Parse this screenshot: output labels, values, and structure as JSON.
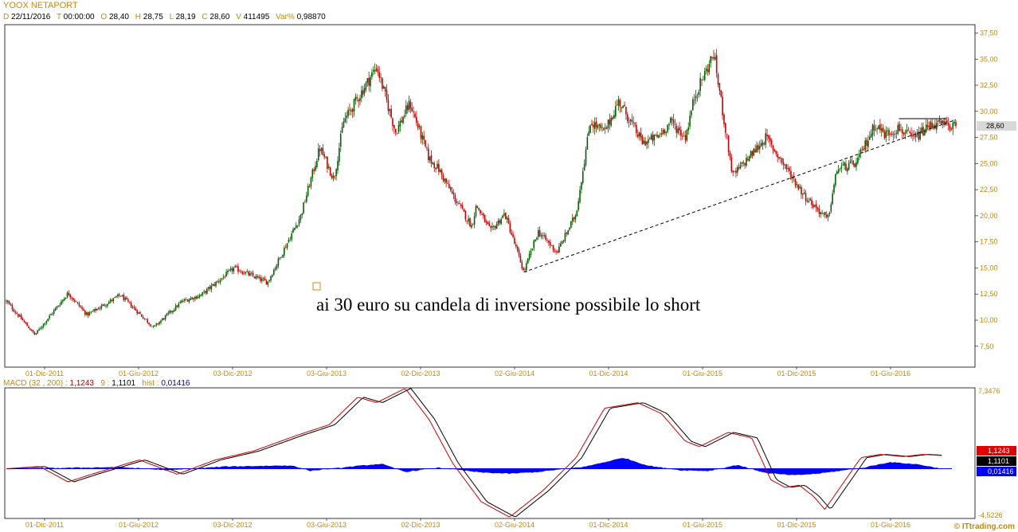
{
  "header": {
    "title": "YOOX NETAPORT",
    "fields": [
      {
        "k": "D",
        "v": "22/11/2016"
      },
      {
        "k": "T",
        "v": "00:00:00"
      },
      {
        "k": "O",
        "v": "28,40"
      },
      {
        "k": "H",
        "v": "28,75"
      },
      {
        "k": "L",
        "v": "28,19"
      },
      {
        "k": "C",
        "v": "28,60"
      },
      {
        "k": "V",
        "v": "411495"
      },
      {
        "k": "Var%",
        "v": "0,98870"
      }
    ]
  },
  "macd_header": {
    "label": "MACD",
    "params": "(32 , 200)",
    "macd_value": "1,1243",
    "signal_period": "9",
    "signal_value": "1,1101",
    "hist_label": "hist",
    "hist_value": "0,01416"
  },
  "copyright": "© ITtrading.com",
  "colors": {
    "up_candle": "#006400",
    "down_candle": "#cc0000",
    "macd_line": "#cc0000",
    "signal_line": "#000000",
    "histogram": "#0000ff",
    "axis_label": "#c88a00",
    "last_price_box": "#d8d8d8"
  },
  "chart_data": [
    {
      "type": "candlestick",
      "title": "YOOX NETAPORT",
      "x_tick_labels": [
        "01-Dic-2011",
        "01-Giu-2012",
        "03-Dic-2012",
        "03-Giu-2013",
        "02-Dic-2013",
        "02-Giu-2014",
        "01-Dic-2014",
        "01-Giu-2015",
        "01-Dic-2015",
        "01-Giu-2016"
      ],
      "y_tick_labels": [
        "7,50",
        "10,00",
        "12,50",
        "15,00",
        "17,50",
        "20,00",
        "22,50",
        "25,00",
        "27,50",
        "30,00",
        "32,50",
        "35,00",
        "37,50"
      ],
      "ylim": [
        5.5,
        38.3
      ],
      "grid": false,
      "last_price": 28.6,
      "last_price_label": "28,60",
      "price_path": {
        "t": [
          0.0,
          0.03,
          0.065,
          0.085,
          0.12,
          0.155,
          0.185,
          0.205,
          0.24,
          0.275,
          0.31,
          0.33,
          0.345,
          0.355,
          0.375,
          0.39,
          0.41,
          0.425,
          0.445,
          0.455,
          0.47,
          0.49,
          0.495,
          0.51,
          0.525,
          0.545,
          0.56,
          0.58,
          0.6,
          0.615,
          0.63,
          0.645,
          0.67,
          0.685,
          0.7,
          0.715,
          0.725,
          0.745,
          0.765,
          0.8,
          0.84,
          0.865,
          0.875,
          0.895,
          0.915,
          0.925,
          0.94,
          0.955,
          0.975,
          1.0
        ],
        "price": [
          11.8,
          8.6,
          12.6,
          10.5,
          12.4,
          9.3,
          11.8,
          12.4,
          15.0,
          13.6,
          20.0,
          26.5,
          23.5,
          29.0,
          32.0,
          34.3,
          28.0,
          30.8,
          25.5,
          24.5,
          22.0,
          19.0,
          21.0,
          18.5,
          20.2,
          14.6,
          18.5,
          16.5,
          20.2,
          29.0,
          28.0,
          31.0,
          27.0,
          27.5,
          29.0,
          27.5,
          31.5,
          35.5,
          23.8,
          27.5,
          22.0,
          19.6,
          24.5,
          25.0,
          28.8,
          27.8,
          28.4,
          27.3,
          28.8,
          28.6
        ]
      },
      "annotations": [
        {
          "type": "text",
          "label": "ai 30 euro su candela di inversione possibile lo short"
        },
        {
          "type": "trendline",
          "style": "dashed",
          "from": {
            "t": 0.545,
            "price": 14.6
          },
          "to": {
            "t": 1.0,
            "price": 29.2
          }
        },
        {
          "type": "resistance_line",
          "style": "solid",
          "price": 29.3,
          "from_t": 0.94,
          "to_t": 0.99
        }
      ]
    },
    {
      "type": "line",
      "title": "MACD",
      "x_tick_labels": [
        "01-Dic-2011",
        "01-Giu-2012",
        "03-Dic-2012",
        "03-Giu-2013",
        "02-Dic-2013",
        "02-Giu-2014",
        "01-Dic-2014",
        "01-Giu-2015",
        "01-Dic-2015",
        "01-Giu-2016"
      ],
      "ylim": [
        -4.5226,
        7.3476
      ],
      "y_tick_labels": [
        "7,3476",
        "-4,5226"
      ],
      "series": [
        {
          "name": "MACD (32 , 200)",
          "last_value": "1,1243"
        },
        {
          "name": "9",
          "last_value": "1,1101"
        },
        {
          "name": "hist",
          "last_value": "0,01416"
        }
      ],
      "macd_path": {
        "t": [
          0.0,
          0.035,
          0.065,
          0.09,
          0.14,
          0.18,
          0.22,
          0.26,
          0.305,
          0.34,
          0.37,
          0.39,
          0.42,
          0.445,
          0.47,
          0.5,
          0.53,
          0.565,
          0.6,
          0.63,
          0.665,
          0.69,
          0.715,
          0.73,
          0.76,
          0.785,
          0.805,
          0.82,
          0.835,
          0.85,
          0.862,
          0.9,
          0.92,
          0.945,
          0.965,
          1.0
        ],
        "value": [
          0.0,
          0.2,
          -1.2,
          -0.5,
          0.8,
          -0.5,
          0.8,
          1.6,
          3.0,
          4.0,
          6.5,
          6.0,
          7.3,
          4.5,
          0.5,
          -3.0,
          -4.4,
          -2.0,
          1.0,
          5.5,
          6.0,
          5.0,
          2.5,
          2.0,
          3.3,
          2.8,
          -1.0,
          -1.7,
          -1.5,
          -2.5,
          -3.7,
          1.0,
          1.3,
          1.1,
          1.3,
          1.1243
        ]
      },
      "histogram_path": {
        "t": [
          0.0,
          0.12,
          0.17,
          0.23,
          0.3,
          0.32,
          0.37,
          0.395,
          0.42,
          0.455,
          0.5,
          0.53,
          0.56,
          0.61,
          0.65,
          0.675,
          0.71,
          0.74,
          0.77,
          0.8,
          0.83,
          0.855,
          0.9,
          0.93,
          0.96,
          0.985
        ],
        "value": [
          0.0,
          0.15,
          -0.15,
          0.2,
          0.3,
          -0.2,
          0.25,
          0.45,
          -0.3,
          0.1,
          -0.35,
          -0.45,
          -0.3,
          0.2,
          1.0,
          0.3,
          -0.15,
          -0.2,
          0.35,
          -0.4,
          -0.6,
          -0.45,
          0.05,
          0.6,
          0.4,
          0.0
        ]
      }
    }
  ]
}
